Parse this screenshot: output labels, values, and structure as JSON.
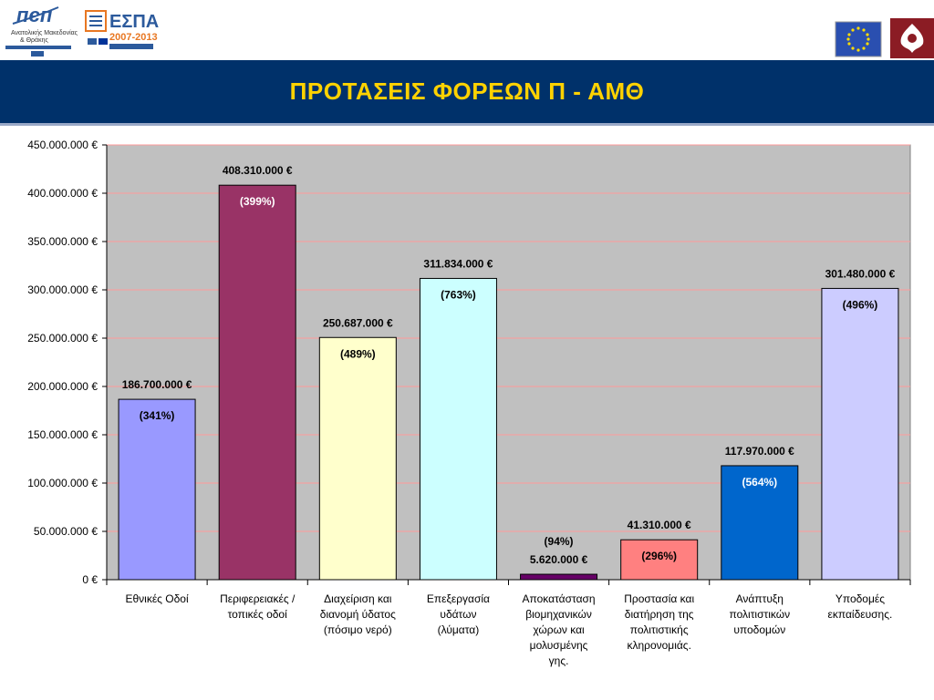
{
  "header": {
    "left_logo_1_lines": [
      "Ανατολικής Μακεδονίας",
      "& Θράκης"
    ],
    "left_logo_2_text": "ΕΣΠΑ",
    "left_logo_2_years": "2007-2013"
  },
  "title": "ΠΡΟΤΑΣΕΙΣ ΦΟΡΕΩΝ Π - ΑΜΘ",
  "colors": {
    "title_band": "#00316a",
    "title_text": "#ffd200",
    "plot_background": "#c0c0c0",
    "gridline": "#ff9a9a"
  },
  "chart_data": {
    "type": "bar",
    "title": "",
    "ylim": [
      0,
      450000000
    ],
    "y_ticks": [
      {
        "value": 0,
        "label": "0 €"
      },
      {
        "value": 50000000,
        "label": "50.000.000 €"
      },
      {
        "value": 100000000,
        "label": "100.000.000 €"
      },
      {
        "value": 150000000,
        "label": "150.000.000 €"
      },
      {
        "value": 200000000,
        "label": "200.000.000 €"
      },
      {
        "value": 250000000,
        "label": "250.000.000 €"
      },
      {
        "value": 300000000,
        "label": "300.000.000 €"
      },
      {
        "value": 350000000,
        "label": "350.000.000 €"
      },
      {
        "value": 400000000,
        "label": "400.000.000 €"
      },
      {
        "value": 450000000,
        "label": "450.000.000 €"
      }
    ],
    "grid": true,
    "bars": [
      {
        "category": [
          "Εθνικές Οδοί"
        ],
        "value": 186700000,
        "value_label": "186.700.000 €",
        "pct_label": "(341%)",
        "color": "#9999ff"
      },
      {
        "category": [
          "Περιφερειακές /",
          "τοπικές οδοί"
        ],
        "value": 408310000,
        "value_label": "408.310.000 €",
        "pct_label": "(399%)",
        "color": "#993366"
      },
      {
        "category": [
          "Διαχείριση και",
          "διανομή ύδατος",
          "(πόσιμο νερό)"
        ],
        "value": 250687000,
        "value_label": "250.687.000 €",
        "pct_label": "(489%)",
        "color": "#ffffcc"
      },
      {
        "category": [
          "Επεξεργασία",
          "υδάτων",
          "(λύματα)"
        ],
        "value": 311834000,
        "value_label": "311.834.000 €",
        "pct_label": "(763%)",
        "color": "#ccffff"
      },
      {
        "category": [
          "Αποκατάσταση",
          "βιομηχανικών",
          "χώρων και",
          "μολυσμένης",
          "γης."
        ],
        "value": 5620000,
        "value_label": "5.620.000 €",
        "pct_label": "(94%)",
        "color": "#660066"
      },
      {
        "category": [
          "Προστασία και",
          "διατήρηση της",
          "πολιτιστικής",
          "κληρονομιάς."
        ],
        "value": 41310000,
        "value_label": "41.310.000 €",
        "pct_label": "(296%)",
        "color": "#ff8080"
      },
      {
        "category": [
          "Ανάπτυξη",
          "πολιτιστικών",
          "υποδομών"
        ],
        "value": 117970000,
        "value_label": "117.970.000 €",
        "pct_label": "(564%)",
        "color": "#0066cc"
      },
      {
        "category": [
          "Υποδομές",
          "εκπαίδευσης."
        ],
        "value": 301480000,
        "value_label": "301.480.000 €",
        "pct_label": "(496%)",
        "color": "#ccccff"
      }
    ]
  }
}
